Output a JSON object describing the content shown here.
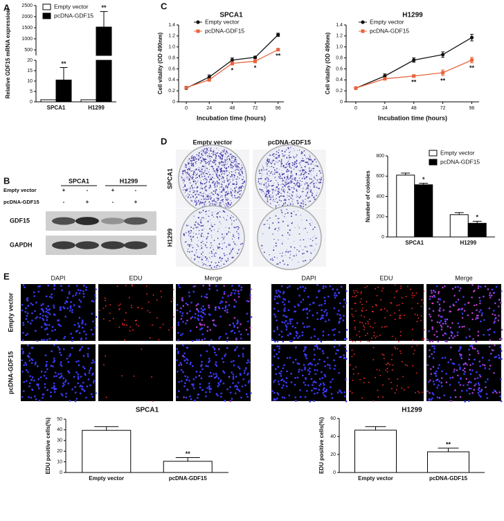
{
  "panel_labels": [
    "A",
    "B",
    "C",
    "D",
    "E"
  ],
  "blot": {
    "cell_lines": [
      "SPCA1",
      "H1299"
    ],
    "rows": [
      {
        "label": "Empty vector",
        "signs": [
          "+",
          "-",
          "+",
          "-"
        ]
      },
      {
        "label": "pcDNA-GDF15",
        "signs": [
          "-",
          "+",
          "-",
          "+"
        ]
      }
    ],
    "bands": [
      "GDF15",
      "GAPDH"
    ]
  },
  "colony": {
    "columns": [
      "Empty vector",
      "pcDNA-GDF15"
    ],
    "rows": [
      "SPCA1",
      "H1299"
    ]
  },
  "edu": {
    "groups": [
      {
        "columns": [
          "DAPI",
          "EDU",
          "Merge"
        ]
      },
      {
        "columns": [
          "DAPI",
          "EDU",
          "Merge"
        ]
      }
    ],
    "rows": [
      "Empty vector",
      "pcDNA-GDF15"
    ]
  },
  "chart_data": [
    {
      "type": "bar",
      "ylabel": "Relative GDF15 mRNA expression",
      "categories": [
        "SPCA1",
        "H1299"
      ],
      "series": [
        {
          "name": "Empty vector",
          "color": "#ffffff",
          "values": [
            1,
            1
          ],
          "errors": [
            0,
            0
          ],
          "significance": [
            null,
            null
          ]
        },
        {
          "name": "pcDNA-GDF15",
          "color": "#000000",
          "values": [
            10.5,
            1530
          ],
          "errors": [
            6,
            700
          ],
          "significance": [
            "**",
            "**"
          ]
        }
      ],
      "ylim": [
        0,
        2500
      ],
      "ybreak": [
        20,
        250
      ],
      "yticks": [
        0,
        5,
        10,
        15,
        20,
        500,
        1000,
        1500,
        2000,
        2500
      ]
    },
    {
      "type": "line",
      "title": "SPCA1",
      "xlabel": "Incubation time (hours)",
      "ylabel": "Cell vitality (OD 490nm)",
      "x": [
        0,
        24,
        48,
        72,
        96
      ],
      "xlim": [
        -8,
        102
      ],
      "xticks": [
        0,
        24,
        48,
        72,
        96
      ],
      "ylim": [
        0,
        1.4
      ],
      "yticks": [
        0,
        0.2,
        0.4,
        0.6,
        0.8,
        {
          "value": 1.0,
          "label": "1.0"
        },
        1.2,
        1.4
      ],
      "series": [
        {
          "name": "Empty vector",
          "color": "#111111",
          "marker": "circle",
          "values": [
            0.25,
            0.45,
            0.76,
            0.81,
            1.22
          ],
          "errors": [
            0.02,
            0.04,
            0.04,
            0.02,
            0.03
          ],
          "significance": [
            null,
            null,
            null,
            null,
            null
          ]
        },
        {
          "name": "pcDNA-GDF15",
          "color": "#e8643c",
          "marker": "square",
          "values": [
            0.26,
            0.4,
            0.7,
            0.74,
            0.95
          ],
          "errors": [
            0.02,
            0.02,
            0.03,
            0.03,
            0.02
          ],
          "significance": [
            null,
            null,
            "*",
            "*",
            "**"
          ]
        }
      ]
    },
    {
      "type": "line",
      "title": "H1299",
      "xlabel": "Incubation time (hours)",
      "ylabel": "Cell vitality (OD 490nm)",
      "x": [
        0,
        24,
        48,
        72,
        96
      ],
      "xlim": [
        -8,
        102
      ],
      "xticks": [
        0,
        24,
        48,
        72,
        96
      ],
      "ylim": [
        0,
        1.4
      ],
      "yticks": [
        0,
        0.2,
        0.4,
        0.6,
        0.8,
        {
          "value": 1.0,
          "label": "1.0"
        },
        1.2,
        1.4
      ],
      "series": [
        {
          "name": "Empty vector",
          "color": "#111111",
          "marker": "circle",
          "values": [
            0.25,
            0.47,
            0.76,
            0.86,
            1.17
          ],
          "errors": [
            0.02,
            0.04,
            0.04,
            0.05,
            0.06
          ],
          "significance": [
            null,
            null,
            null,
            null,
            null
          ]
        },
        {
          "name": "pcDNA-GDF15",
          "color": "#e8643c",
          "marker": "square",
          "values": [
            0.25,
            0.42,
            0.47,
            0.53,
            0.76
          ],
          "errors": [
            0.02,
            0.02,
            0.02,
            0.05,
            0.05
          ],
          "significance": [
            null,
            null,
            "**",
            "**",
            "**"
          ]
        }
      ]
    },
    {
      "type": "bar",
      "ylabel": "Number of colonies",
      "categories": [
        "SPCA1",
        "H1299"
      ],
      "series": [
        {
          "name": "Empty vector",
          "color": "#ffffff",
          "values": [
            610,
            220
          ],
          "errors": [
            20,
            20
          ],
          "significance": [
            null,
            null
          ]
        },
        {
          "name": "pcDNA-GDF15",
          "color": "#000000",
          "values": [
            515,
            135
          ],
          "errors": [
            15,
            20
          ],
          "significance": [
            "*",
            "*"
          ]
        }
      ],
      "ylim": [
        0,
        800
      ],
      "yticks": [
        0,
        200,
        400,
        600,
        800
      ]
    },
    {
      "type": "bar",
      "title": "SPCA1",
      "ylabel": "EDU positive cells(%)",
      "categories": [
        "Empty vector",
        "pcDNA-GDF15"
      ],
      "series": [
        {
          "colors": [
            "#ffffff",
            "#ffffff"
          ],
          "values": [
            39.5,
            10.5
          ],
          "errors": [
            3.5,
            3.5
          ],
          "significance": [
            null,
            "**"
          ]
        }
      ],
      "ylim": [
        0,
        50
      ],
      "yticks": [
        0,
        10,
        20,
        30,
        40,
        50
      ]
    },
    {
      "type": "bar",
      "title": "H1299",
      "ylabel": "EDU positive cells(%)",
      "categories": [
        "Empty vector",
        "pcDNA-GDF15"
      ],
      "series": [
        {
          "colors": [
            "#ffffff",
            "#ffffff"
          ],
          "values": [
            47,
            23
          ],
          "errors": [
            4,
            4
          ],
          "significance": [
            null,
            "**"
          ]
        }
      ],
      "ylim": [
        0,
        60
      ],
      "yticks": [
        0,
        20,
        40,
        60
      ]
    }
  ]
}
